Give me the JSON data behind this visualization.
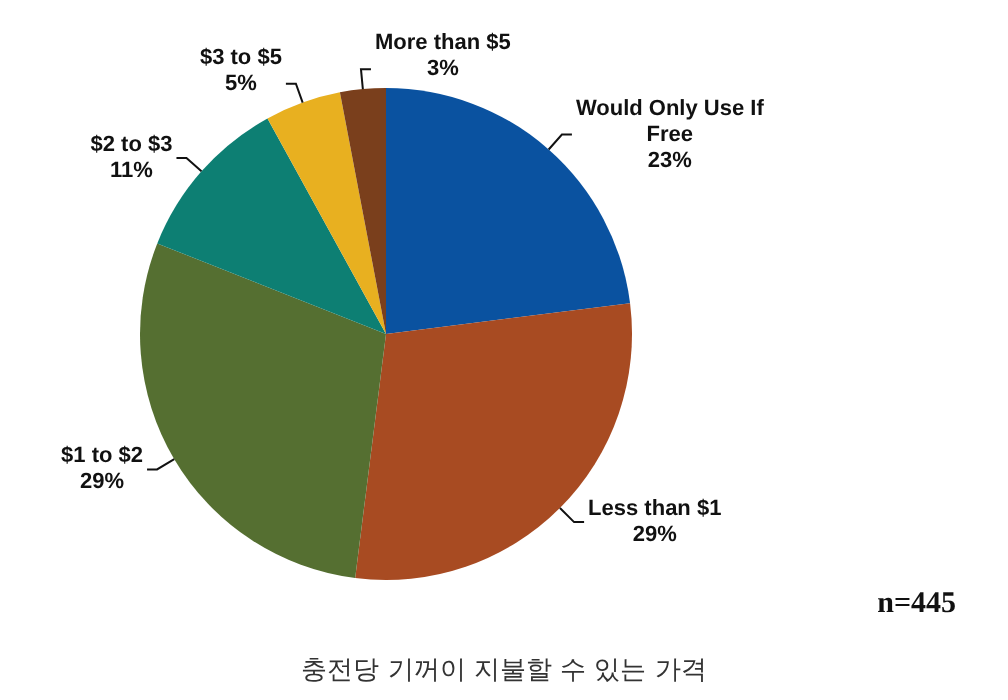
{
  "chart_data": {
    "type": "pie",
    "title": "충전당 기꺼이 지불할 수 있는 가격",
    "categories": [
      "Would Only Use If Free",
      "Less than $1",
      "$1 to $2",
      "$2 to $3",
      "$3 to $5",
      "More than $5"
    ],
    "values": [
      23,
      29,
      29,
      11,
      5,
      3
    ],
    "colors": [
      "#0a52a0",
      "#a84b22",
      "#556f31",
      "#0d7f73",
      "#e8b020",
      "#7a3f1c"
    ],
    "value_labels": [
      "23%",
      "29%",
      "29%",
      "11%",
      "5%",
      "3%"
    ],
    "annotations": [
      "n=445"
    ]
  }
}
